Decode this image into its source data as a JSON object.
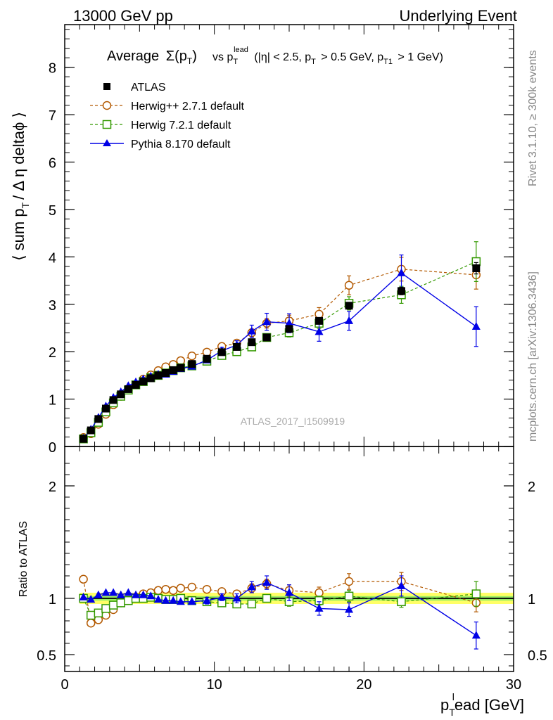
{
  "header": {
    "left": "13000 GeV pp",
    "right": "Underlying Event"
  },
  "side_labels": {
    "rivet": "Rivet 3.1.10, ≥ 300k events",
    "mcplots": "mcplots.cern.ch [arXiv:1306.3436]"
  },
  "colors": {
    "atlas": "#000000",
    "herwigpp": "#b35900",
    "herwig7": "#339900",
    "pythia": "#0000e6",
    "band_outer": "#ffff66",
    "band_inner": "#99ee66"
  },
  "chart_data": [
    {
      "type": "scatter",
      "title_parts": {
        "average": "Average",
        "sigma": "Σ(p",
        "sigma_sub": "T",
        "sigma_close": ")",
        "vs": "vs p",
        "vs_sub": "T",
        "vs_sup": "lead",
        "cuts1": "(|η| < 2.5, p",
        "cuts1_sub": "T",
        "cuts2": "> 0.5 GeV, p",
        "cuts2_sub": "T1",
        "cuts3": "> 1 GeV)"
      },
      "ylabel_parts": {
        "pre": "⟨ sum p",
        "sub": "T",
        "post": "/ Δ η deltaϕ ⟩"
      },
      "watermark": "ATLAS_2017_I1509919",
      "xlim": [
        0,
        30
      ],
      "ylim": [
        0,
        8.9
      ],
      "xticks": [
        0,
        10,
        20,
        30
      ],
      "yticks": [
        0,
        1,
        2,
        3,
        4,
        5,
        6,
        7,
        8
      ],
      "legend_position": "top-left",
      "series": [
        {
          "name": "ATLAS",
          "key": "atlas",
          "marker": "filled-square",
          "x": [
            1.25,
            1.75,
            2.25,
            2.75,
            3.25,
            3.75,
            4.25,
            4.75,
            5.25,
            5.75,
            6.25,
            6.75,
            7.25,
            7.75,
            8.5,
            9.5,
            10.5,
            11.5,
            12.5,
            13.5,
            15,
            17,
            19,
            22.5,
            27.5
          ],
          "y": [
            0.16,
            0.34,
            0.58,
            0.8,
            0.98,
            1.1,
            1.21,
            1.3,
            1.37,
            1.44,
            1.5,
            1.55,
            1.61,
            1.66,
            1.74,
            1.85,
            1.99,
            2.1,
            2.2,
            2.3,
            2.48,
            2.65,
            2.97,
            3.28,
            3.76
          ],
          "err": [
            0.01,
            0.01,
            0.01,
            0.01,
            0.01,
            0.01,
            0.01,
            0.01,
            0.01,
            0.01,
            0.01,
            0.01,
            0.01,
            0.01,
            0.01,
            0.01,
            0.02,
            0.02,
            0.03,
            0.03,
            0.04,
            0.05,
            0.07,
            0.08,
            0.12
          ]
        },
        {
          "name": "Herwig++ 2.7.1 default",
          "key": "herwigpp",
          "marker": "open-circle",
          "dashed": true,
          "x": [
            1.25,
            1.75,
            2.25,
            2.75,
            3.25,
            3.75,
            4.25,
            4.75,
            5.25,
            5.75,
            6.25,
            6.75,
            7.25,
            7.75,
            8.5,
            9.5,
            10.5,
            11.5,
            12.5,
            13.5,
            15,
            17,
            19,
            22.5,
            27.5
          ],
          "y": [
            0.19,
            0.27,
            0.47,
            0.68,
            0.88,
            1.06,
            1.19,
            1.31,
            1.42,
            1.51,
            1.6,
            1.68,
            1.73,
            1.81,
            1.91,
            1.99,
            2.11,
            2.18,
            2.4,
            2.6,
            2.65,
            2.79,
            3.4,
            3.74,
            3.62
          ],
          "err": [
            0.01,
            0.01,
            0.01,
            0.02,
            0.02,
            0.02,
            0.02,
            0.02,
            0.02,
            0.02,
            0.03,
            0.03,
            0.03,
            0.03,
            0.03,
            0.04,
            0.05,
            0.06,
            0.08,
            0.1,
            0.12,
            0.14,
            0.2,
            0.25,
            0.3
          ]
        },
        {
          "name": "Herwig 7.2.1 default",
          "key": "herwig7",
          "marker": "open-square",
          "dashed": true,
          "x": [
            1.25,
            1.75,
            2.25,
            2.75,
            3.25,
            3.75,
            4.25,
            4.75,
            5.25,
            5.75,
            6.25,
            6.75,
            7.25,
            7.75,
            8.5,
            9.5,
            10.5,
            11.5,
            12.5,
            13.5,
            15,
            17,
            19,
            22.5,
            27.5
          ],
          "y": [
            0.16,
            0.29,
            0.51,
            0.73,
            0.92,
            1.06,
            1.19,
            1.3,
            1.37,
            1.45,
            1.5,
            1.55,
            1.6,
            1.66,
            1.7,
            1.8,
            1.92,
            2.0,
            2.1,
            2.3,
            2.4,
            2.6,
            3.02,
            3.2,
            3.9
          ],
          "err": [
            0.01,
            0.01,
            0.01,
            0.02,
            0.02,
            0.02,
            0.02,
            0.02,
            0.02,
            0.02,
            0.02,
            0.02,
            0.03,
            0.03,
            0.03,
            0.03,
            0.04,
            0.05,
            0.06,
            0.07,
            0.09,
            0.11,
            0.14,
            0.18,
            0.42
          ]
        },
        {
          "name": "Pythia 8.170 default",
          "key": "pythia",
          "marker": "filled-triangle",
          "dashed": false,
          "x": [
            1.25,
            1.75,
            2.25,
            2.75,
            3.25,
            3.75,
            4.25,
            4.75,
            5.25,
            5.75,
            6.25,
            6.75,
            7.25,
            7.75,
            8.5,
            9.5,
            10.5,
            11.5,
            12.5,
            13.5,
            15,
            17,
            19,
            22.5,
            27.5
          ],
          "y": [
            0.17,
            0.36,
            0.61,
            0.85,
            1.03,
            1.15,
            1.28,
            1.36,
            1.42,
            1.48,
            1.52,
            1.52,
            1.58,
            1.64,
            1.69,
            1.82,
            2.02,
            2.14,
            2.43,
            2.63,
            2.6,
            2.42,
            2.65,
            3.66,
            2.53
          ],
          "err": [
            0.01,
            0.01,
            0.01,
            0.02,
            0.02,
            0.02,
            0.02,
            0.02,
            0.03,
            0.03,
            0.03,
            0.03,
            0.03,
            0.04,
            0.04,
            0.05,
            0.07,
            0.09,
            0.13,
            0.18,
            0.2,
            0.2,
            0.2,
            0.38,
            0.42
          ]
        }
      ]
    },
    {
      "type": "scatter",
      "ylabel": "Ratio to ATLAS",
      "xlabel_parts": {
        "pre": "p",
        "sub": "T",
        "sup": "l",
        "post": "ead [GeV]"
      },
      "xlim": [
        0,
        30
      ],
      "ylim": [
        0.35,
        2.35
      ],
      "xticks": [
        0,
        10,
        20,
        30
      ],
      "yticks": [
        0.5,
        1,
        2
      ],
      "ytick_labels": [
        "0.5",
        "1",
        "2"
      ],
      "reference_line": 1,
      "band": {
        "x": [
          1.0,
          30.0
        ],
        "inner": 0.02,
        "outer": 0.05
      },
      "series": [
        {
          "key": "herwigpp",
          "marker": "open-circle",
          "dashed": true,
          "x": [
            1.25,
            1.75,
            2.25,
            2.75,
            3.25,
            3.75,
            4.25,
            4.75,
            5.25,
            5.75,
            6.25,
            6.75,
            7.25,
            7.75,
            8.5,
            9.5,
            10.5,
            11.5,
            12.5,
            13.5,
            15,
            17,
            19,
            22.5,
            27.5
          ],
          "y": [
            1.17,
            0.78,
            0.81,
            0.85,
            0.9,
            0.96,
            0.98,
            1.01,
            1.04,
            1.05,
            1.07,
            1.08,
            1.07,
            1.09,
            1.1,
            1.08,
            1.06,
            1.04,
            1.09,
            1.13,
            1.07,
            1.05,
            1.15,
            1.15,
            0.96
          ],
          "err": [
            0.02,
            0.02,
            0.02,
            0.02,
            0.02,
            0.02,
            0.02,
            0.02,
            0.02,
            0.02,
            0.02,
            0.02,
            0.02,
            0.02,
            0.02,
            0.02,
            0.03,
            0.03,
            0.04,
            0.04,
            0.05,
            0.05,
            0.07,
            0.08,
            0.08
          ]
        },
        {
          "key": "herwig7",
          "marker": "open-square",
          "dashed": true,
          "x": [
            1.25,
            1.75,
            2.25,
            2.75,
            3.25,
            3.75,
            4.25,
            4.75,
            5.25,
            5.75,
            6.25,
            6.75,
            7.25,
            7.75,
            8.5,
            9.5,
            10.5,
            11.5,
            12.5,
            13.5,
            15,
            17,
            19,
            22.5,
            27.5
          ],
          "y": [
            1.0,
            0.85,
            0.87,
            0.91,
            0.94,
            0.96,
            0.98,
            1.0,
            1.0,
            1.01,
            1.0,
            0.99,
            0.99,
            1.0,
            0.98,
            0.97,
            0.96,
            0.95,
            0.95,
            1.0,
            0.97,
            0.98,
            1.02,
            0.97,
            1.04
          ],
          "err": [
            0.02,
            0.02,
            0.02,
            0.02,
            0.02,
            0.02,
            0.02,
            0.02,
            0.02,
            0.02,
            0.02,
            0.02,
            0.02,
            0.02,
            0.02,
            0.02,
            0.02,
            0.02,
            0.03,
            0.03,
            0.04,
            0.04,
            0.05,
            0.05,
            0.11
          ]
        },
        {
          "key": "pythia",
          "marker": "filled-triangle",
          "dashed": false,
          "x": [
            1.25,
            1.75,
            2.25,
            2.75,
            3.25,
            3.75,
            4.25,
            4.75,
            5.25,
            5.75,
            6.25,
            6.75,
            7.25,
            7.75,
            8.5,
            9.5,
            10.5,
            11.5,
            12.5,
            13.5,
            15,
            17,
            19,
            22.5,
            27.5
          ],
          "y": [
            1.01,
            0.99,
            1.03,
            1.05,
            1.05,
            1.03,
            1.05,
            1.03,
            1.03,
            1.02,
            0.99,
            0.98,
            0.98,
            0.97,
            0.97,
            0.98,
            1.01,
            1.0,
            1.1,
            1.14,
            1.05,
            0.91,
            0.9,
            1.11,
            0.67
          ],
          "err": [
            0.02,
            0.02,
            0.02,
            0.02,
            0.02,
            0.02,
            0.02,
            0.02,
            0.02,
            0.02,
            0.02,
            0.02,
            0.02,
            0.02,
            0.02,
            0.03,
            0.03,
            0.04,
            0.05,
            0.06,
            0.07,
            0.06,
            0.06,
            0.09,
            0.12
          ]
        }
      ]
    }
  ]
}
